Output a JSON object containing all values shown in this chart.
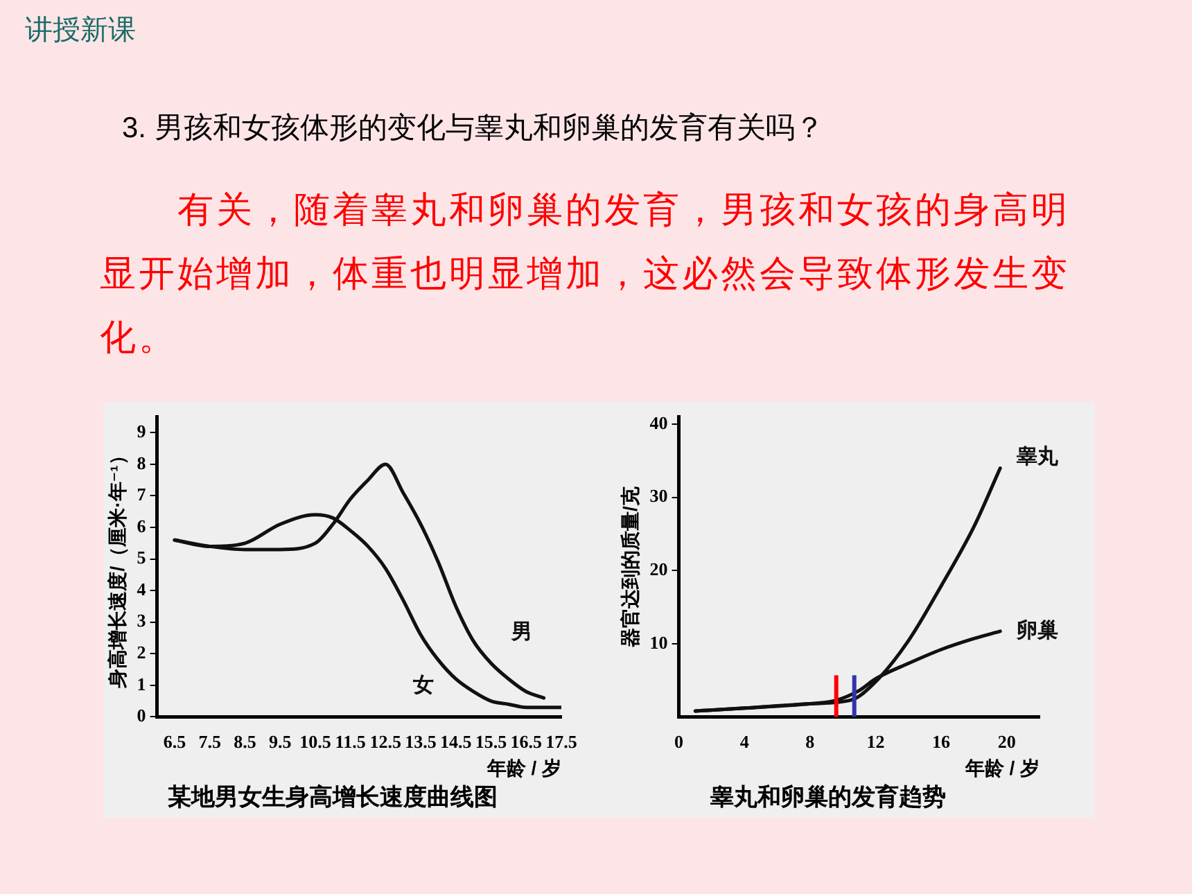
{
  "chart_data": [
    {
      "type": "line",
      "title": "某地男女生身高增长速度曲线图",
      "xlabel": "年龄 / 岁",
      "ylabel": "身高增长速度/（厘米·年⁻¹）",
      "annotations": [
        "讲授新课",
        "3. 男孩和女孩体形的变化与睾丸和卵巢的发育有关吗？",
        "有关，随着睾丸和卵巢的发育，男孩和女孩的身高明显开始增加，体重也明显增加，这必然会导致体形发生变化。"
      ],
      "x": [
        6.5,
        7.5,
        8.5,
        9.5,
        10.5,
        11,
        11.5,
        12,
        12.5,
        13,
        13.5,
        14,
        14.5,
        15,
        15.5,
        16,
        16.5,
        17,
        17.5
      ],
      "series": [
        {
          "name": "男",
          "color": "#111111",
          "x": [
            6.5,
            7.5,
            8.5,
            9.5,
            10.5,
            11,
            11.5,
            12,
            12.5,
            13,
            13.5,
            14,
            14.5,
            15,
            15.5,
            16,
            16.5,
            17
          ],
          "values": [
            5.6,
            5.4,
            5.3,
            5.3,
            5.5,
            6.1,
            6.9,
            7.5,
            8.0,
            7.1,
            6.1,
            4.9,
            3.5,
            2.4,
            1.7,
            1.2,
            0.8,
            0.6
          ]
        },
        {
          "name": "女",
          "color": "#111111",
          "values": [
            5.6,
            5.4,
            5.5,
            6.1,
            6.4,
            6.3,
            5.9,
            5.4,
            4.7,
            3.7,
            2.6,
            1.8,
            1.2,
            0.8,
            0.5,
            0.4,
            0.3,
            0.3,
            0.3
          ]
        }
      ],
      "xlim": [
        6,
        17.5
      ],
      "xticks": [
        6.5,
        7.5,
        8.5,
        9.5,
        10.5,
        11.5,
        12.5,
        13.5,
        14.5,
        15.5,
        16.5,
        17.5
      ],
      "ylim": [
        0,
        9.5
      ],
      "yticks": [
        0,
        1,
        2,
        3,
        4,
        5,
        6,
        7,
        8,
        9
      ],
      "grid": false,
      "legend": false,
      "marker": "none",
      "line_style": "solid"
    },
    {
      "type": "line",
      "title": "睾丸和卵巢的发育趋势",
      "xlabel": "年龄 / 岁",
      "ylabel": "器官达到的质量/克",
      "series": [
        {
          "name": "睾丸",
          "color": "#111111",
          "x": [
            1,
            4,
            8,
            10.5,
            12,
            14,
            16,
            18,
            19.6
          ],
          "values": [
            0.8,
            1.2,
            1.8,
            2.3,
            4.8,
            10.4,
            17.9,
            26,
            34
          ]
        },
        {
          "name": "卵巢",
          "color": "#111111",
          "x": [
            1,
            4,
            8,
            9.5,
            11,
            12,
            14,
            16,
            18,
            19.6
          ],
          "values": [
            0.8,
            1.2,
            1.8,
            2.2,
            3.6,
            5.2,
            7.3,
            9.2,
            10.7,
            11.7
          ]
        }
      ],
      "ref_lines": [
        {
          "axis": "x",
          "value": 9.6,
          "color": "#ff0000"
        },
        {
          "axis": "x",
          "value": 10.7,
          "color": "#3333aa"
        }
      ],
      "xlim": [
        0,
        22
      ],
      "xticks": [
        0,
        4,
        8,
        12,
        16,
        20
      ],
      "ylim": [
        0,
        41
      ],
      "yticks": [
        10,
        20,
        30,
        40
      ],
      "grid": false,
      "legend": false,
      "marker": "none",
      "line_style": "solid"
    }
  ]
}
